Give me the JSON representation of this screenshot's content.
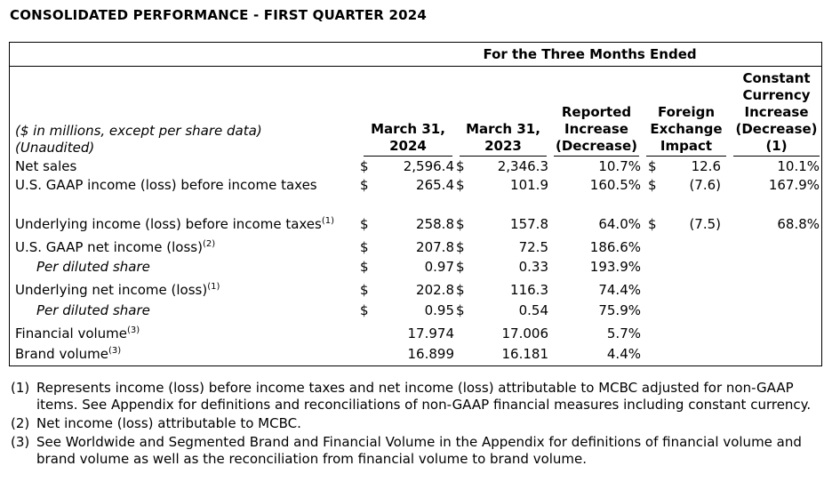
{
  "title": "CONSOLIDATED PERFORMANCE - FIRST QUARTER 2024",
  "period_header": "For the Three Months Ended",
  "header": {
    "label_line1": "($ in millions, except per share data)",
    "label_line2": "(Unaudited)",
    "columns": [
      "March 31, 2024",
      "March 31, 2023",
      "Reported Increase (Decrease)",
      "Foreign Exchange Impact",
      "Constant Currency Increase (Decrease) (1)"
    ]
  },
  "rows": [
    {
      "label": "Net sales",
      "sup": "",
      "italic": false,
      "d1": "$",
      "v1": "2,596.4",
      "d2": "$",
      "v2": "2,346.3",
      "v3": "10.7%",
      "d4": "$",
      "v4": "12.6",
      "v5": "10.1%"
    },
    {
      "label": "U.S. GAAP income (loss) before income taxes",
      "sup": "",
      "italic": false,
      "d1": "$",
      "v1": "265.4",
      "d2": "$",
      "v2": "101.9",
      "v3": "160.5%",
      "d4": "$",
      "v4": "(7.6)",
      "v5": "167.9%"
    },
    {
      "label": "Underlying income (loss) before income taxes",
      "sup": "(1)",
      "italic": false,
      "d1": "$",
      "v1": "258.8",
      "d2": "$",
      "v2": "157.8",
      "v3": "64.0%",
      "d4": "$",
      "v4": "(7.5)",
      "v5": "68.8%"
    },
    {
      "label": "U.S. GAAP net income (loss)",
      "sup": "(2)",
      "italic": false,
      "d1": "$",
      "v1": "207.8",
      "d2": "$",
      "v2": "72.5",
      "v3": "186.6%",
      "d4": "",
      "v4": "",
      "v5": ""
    },
    {
      "label": "Per diluted share",
      "sup": "",
      "italic": true,
      "d1": "$",
      "v1": "0.97",
      "d2": "$",
      "v2": "0.33",
      "v3": "193.9%",
      "d4": "",
      "v4": "",
      "v5": ""
    },
    {
      "label": "Underlying net income (loss)",
      "sup": "(1)",
      "italic": false,
      "d1": "$",
      "v1": "202.8",
      "d2": "$",
      "v2": "116.3",
      "v3": "74.4%",
      "d4": "",
      "v4": "",
      "v5": ""
    },
    {
      "label": "Per diluted share",
      "sup": "",
      "italic": true,
      "d1": "$",
      "v1": "0.95",
      "d2": "$",
      "v2": "0.54",
      "v3": "75.9%",
      "d4": "",
      "v4": "",
      "v5": ""
    },
    {
      "label": "Financial volume",
      "sup": "(3)",
      "italic": false,
      "d1": "",
      "v1": "17.974",
      "d2": "",
      "v2": "17.006",
      "v3": "5.7%",
      "d4": "",
      "v4": "",
      "v5": ""
    },
    {
      "label": "Brand volume",
      "sup": "(3)",
      "italic": false,
      "d1": "",
      "v1": "16.899",
      "d2": "",
      "v2": "16.181",
      "v3": "4.4%",
      "d4": "",
      "v4": "",
      "v5": ""
    }
  ],
  "footnotes": [
    {
      "marker": "(1)",
      "text": "Represents income (loss) before income taxes and net income (loss) attributable to MCBC adjusted for non-GAAP items. See Appendix for definitions and reconciliations of non-GAAP financial measures including constant currency."
    },
    {
      "marker": "(2)",
      "text": "Net income (loss) attributable to MCBC."
    },
    {
      "marker": "(3)",
      "text": "See Worldwide and Segmented Brand and Financial Volume in the Appendix for definitions of financial volume and brand volume as well as the reconciliation from financial volume to brand volume."
    }
  ]
}
